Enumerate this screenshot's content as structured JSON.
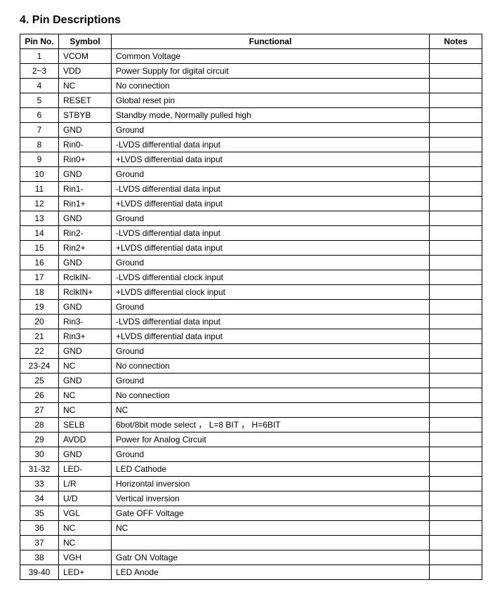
{
  "section_title": "4. Pin Descriptions",
  "table": {
    "headers": {
      "pin": "Pin No.",
      "symbol": "Symbol",
      "functional": "Functional",
      "notes": "Notes"
    },
    "rows": [
      {
        "pin": "1",
        "symbol": "VCOM",
        "functional": "Common Voltage",
        "notes": ""
      },
      {
        "pin": "2~3",
        "symbol": "VDD",
        "functional": "Power Supply for digital circuit",
        "notes": ""
      },
      {
        "pin": "4",
        "symbol": "NC",
        "functional": "No connection",
        "notes": ""
      },
      {
        "pin": "5",
        "symbol": "RESET",
        "functional": "Global reset pin",
        "notes": ""
      },
      {
        "pin": "6",
        "symbol": "STBYB",
        "functional": "Standby mode, Normally pulled high",
        "notes": ""
      },
      {
        "pin": "7",
        "symbol": "GND",
        "functional": "Ground",
        "notes": ""
      },
      {
        "pin": "8",
        "symbol": "Rin0-",
        "functional": "-LVDS differential data input",
        "notes": ""
      },
      {
        "pin": "9",
        "symbol": "Rin0+",
        "functional": "+LVDS differential data input",
        "notes": ""
      },
      {
        "pin": "10",
        "symbol": "GND",
        "functional": "Ground",
        "notes": ""
      },
      {
        "pin": "11",
        "symbol": "Rin1-",
        "functional": "-LVDS differential data input",
        "notes": ""
      },
      {
        "pin": "12",
        "symbol": "Rin1+",
        "functional": "+LVDS differential data input",
        "notes": ""
      },
      {
        "pin": "13",
        "symbol": "GND",
        "functional": "Ground",
        "notes": ""
      },
      {
        "pin": "14",
        "symbol": "Rin2-",
        "functional": "-LVDS differential data input",
        "notes": ""
      },
      {
        "pin": "15",
        "symbol": "Rin2+",
        "functional": "+LVDS differential data input",
        "notes": ""
      },
      {
        "pin": "16",
        "symbol": "GND",
        "functional": "Ground",
        "notes": ""
      },
      {
        "pin": "17",
        "symbol": "RclkIN-",
        "functional": "-LVDS differential clock input",
        "notes": ""
      },
      {
        "pin": "18",
        "symbol": "RclkIN+",
        "functional": "+LVDS differential clock input",
        "notes": ""
      },
      {
        "pin": "19",
        "symbol": "GND",
        "functional": "Ground",
        "notes": ""
      },
      {
        "pin": "20",
        "symbol": "Rin3-",
        "functional": "-LVDS differential data input",
        "notes": ""
      },
      {
        "pin": "21",
        "symbol": "Rin3+",
        "functional": "+LVDS differential data input",
        "notes": ""
      },
      {
        "pin": "22",
        "symbol": "GND",
        "functional": "Ground",
        "notes": ""
      },
      {
        "pin": "23-24",
        "symbol": "NC",
        "functional": "No connection",
        "notes": ""
      },
      {
        "pin": "25",
        "symbol": "GND",
        "functional": "Ground",
        "notes": ""
      },
      {
        "pin": "26",
        "symbol": "NC",
        "functional": "No connection",
        "notes": ""
      },
      {
        "pin": "27",
        "symbol": "NC",
        "functional": "NC",
        "notes": ""
      },
      {
        "pin": "28",
        "symbol": "SELB",
        "functional": "6bot/8bit mode select ， L=8 BIT ， H=6BIT",
        "notes": ""
      },
      {
        "pin": "29",
        "symbol": "AVDD",
        "functional": "Power for Analog Circuit",
        "notes": ""
      },
      {
        "pin": "30",
        "symbol": "GND",
        "functional": "Ground",
        "notes": ""
      },
      {
        "pin": "31-32",
        "symbol": "LED-",
        "functional": "LED Cathode",
        "notes": ""
      },
      {
        "pin": "33",
        "symbol": "L/R",
        "functional": "Horizontal inversion",
        "notes": ""
      },
      {
        "pin": "34",
        "symbol": "U/D",
        "functional": "Vertical inversion",
        "notes": ""
      },
      {
        "pin": "35",
        "symbol": "VGL",
        "functional": "Gate OFF Voltage",
        "notes": ""
      },
      {
        "pin": "36",
        "symbol": "NC",
        "functional": "NC",
        "notes": ""
      },
      {
        "pin": "37",
        "symbol": "NC",
        "functional": "",
        "notes": ""
      },
      {
        "pin": "38",
        "symbol": "VGH",
        "functional": "Gatr ON Voltage",
        "notes": ""
      },
      {
        "pin": "39-40",
        "symbol": "LED+",
        "functional": "LED Anode",
        "notes": ""
      }
    ]
  }
}
